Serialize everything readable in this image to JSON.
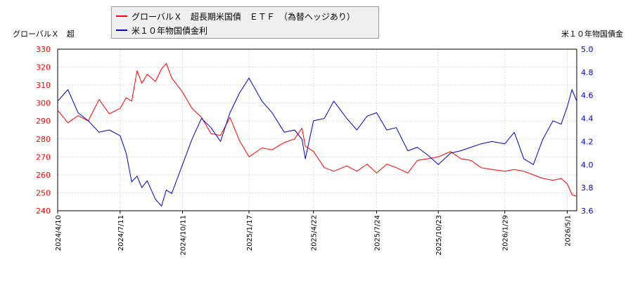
{
  "chart_data": {
    "type": "line",
    "legend": [
      {
        "name": "グローバルＸ　超長期米国債　ＥＴＦ　（為替ヘッジあり）",
        "color": "#ff0000"
      },
      {
        "name": "米１０年物国債金利",
        "color": "#0000cc"
      }
    ],
    "left_axis_label": "グローバルＸ　超",
    "right_axis_label": "米１０年物国債金",
    "y_left": {
      "min": 240,
      "max": 330,
      "ticks": [
        "240",
        "250",
        "260",
        "270",
        "280",
        "290",
        "300",
        "310",
        "320",
        "330"
      ],
      "color": "#ff0000"
    },
    "y_right": {
      "min": 3.6,
      "max": 5.0,
      "ticks": [
        "3.6",
        "3.8",
        "4.0",
        "4.2",
        "4.4",
        "4.6",
        "4.8",
        "5.0"
      ],
      "color": "#0000cc"
    },
    "x_ticks": [
      "2024/4/10",
      "2024/7/11",
      "2024/10/11",
      "2025/1/17",
      "2025/4/22",
      "2025/7/24",
      "2025/10/23",
      "2026/1/29",
      "2026/5/1"
    ],
    "grid": true,
    "legend_placement": "top",
    "series": [
      {
        "name": "グローバルＸ　超長期米国債　ＥＴＦ　（為替ヘッジあり）",
        "axis": "left",
        "x": [
          "2024/4/10",
          "2024/4/25",
          "2024/5/10",
          "2024/5/25",
          "2024/6/10",
          "2024/6/25",
          "2024/7/11",
          "2024/7/20",
          "2024/7/28",
          "2024/8/5",
          "2024/8/12",
          "2024/8/20",
          "2024/9/1",
          "2024/9/10",
          "2024/9/17",
          "2024/9/25",
          "2024/10/11",
          "2024/10/25",
          "2024/11/8",
          "2024/11/22",
          "2024/12/6",
          "2024/12/20",
          "2025/1/3",
          "2025/1/17",
          "2025/2/5",
          "2025/2/20",
          "2025/3/10",
          "2025/3/25",
          "2025/4/5",
          "2025/4/10",
          "2025/4/22",
          "2025/5/8",
          "2025/5/22",
          "2025/6/10",
          "2025/6/25",
          "2025/7/10",
          "2025/7/24",
          "2025/8/8",
          "2025/8/22",
          "2025/9/8",
          "2025/9/22",
          "2025/10/8",
          "2025/10/23",
          "2025/11/10",
          "2025/11/25",
          "2025/12/10",
          "2025/12/25",
          "2026/1/10",
          "2026/1/29",
          "2026/2/12",
          "2026/2/26",
          "2026/3/12",
          "2026/3/26",
          "2026/4/10",
          "2026/4/22",
          "2026/5/1",
          "2026/5/8",
          "2026/5/15"
        ],
        "y": [
          296,
          289,
          293,
          290,
          302,
          294,
          297,
          303,
          301,
          318,
          311,
          316,
          312,
          319,
          322,
          314,
          306,
          297,
          292,
          283,
          282,
          292,
          279,
          270,
          275,
          274,
          278,
          280,
          286,
          276,
          273,
          264,
          262,
          265,
          262,
          266,
          261,
          266,
          264,
          261,
          268,
          269,
          270,
          273,
          269,
          268,
          264,
          263,
          262,
          263,
          262,
          260,
          258,
          257,
          258,
          255,
          249,
          248
        ]
      },
      {
        "name": "米１０年物国債金利",
        "axis": "right",
        "x": [
          "2024/4/10",
          "2024/4/25",
          "2024/5/10",
          "2024/5/25",
          "2024/6/10",
          "2024/6/25",
          "2024/7/11",
          "2024/7/20",
          "2024/7/28",
          "2024/8/5",
          "2024/8/12",
          "2024/8/20",
          "2024/9/1",
          "2024/9/10",
          "2024/9/17",
          "2024/9/25",
          "2024/10/11",
          "2024/10/25",
          "2024/11/8",
          "2024/11/22",
          "2024/12/6",
          "2024/12/20",
          "2025/1/3",
          "2025/1/17",
          "2025/2/5",
          "2025/2/20",
          "2025/3/10",
          "2025/3/25",
          "2025/4/5",
          "2025/4/10",
          "2025/4/22",
          "2025/5/8",
          "2025/5/22",
          "2025/6/10",
          "2025/6/25",
          "2025/7/10",
          "2025/7/24",
          "2025/8/8",
          "2025/8/22",
          "2025/9/8",
          "2025/9/22",
          "2025/10/8",
          "2025/10/23",
          "2025/11/10",
          "2025/11/25",
          "2025/12/10",
          "2025/12/25",
          "2026/1/10",
          "2026/1/29",
          "2026/2/12",
          "2026/2/26",
          "2026/3/12",
          "2026/3/26",
          "2026/4/10",
          "2026/4/22",
          "2026/5/1",
          "2026/5/8",
          "2026/5/15"
        ],
        "y": [
          4.55,
          4.65,
          4.45,
          4.38,
          4.28,
          4.3,
          4.25,
          4.1,
          3.85,
          3.9,
          3.8,
          3.86,
          3.7,
          3.64,
          3.78,
          3.75,
          4.0,
          4.22,
          4.4,
          4.32,
          4.2,
          4.45,
          4.62,
          4.75,
          4.55,
          4.45,
          4.28,
          4.3,
          4.22,
          4.05,
          4.38,
          4.4,
          4.55,
          4.4,
          4.3,
          4.42,
          4.45,
          4.3,
          4.32,
          4.12,
          4.15,
          4.08,
          4.0,
          4.1,
          4.12,
          4.15,
          4.18,
          4.2,
          4.18,
          4.28,
          4.05,
          4.0,
          4.22,
          4.38,
          4.35,
          4.5,
          4.65,
          4.55
        ]
      }
    ]
  }
}
